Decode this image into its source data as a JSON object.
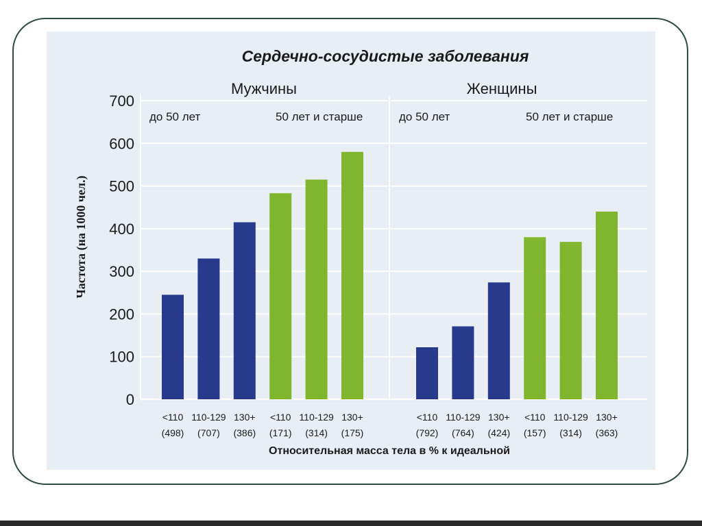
{
  "chart_data": {
    "type": "bar",
    "title": "Сердечно-сосудистые заболевания",
    "ylabel": "Частота (на 1000 чел.)",
    "xlabel": "Относительная масса тела в % к идеальной",
    "ylim": [
      0,
      700
    ],
    "yticks": [
      "700",
      "600",
      "500",
      "400",
      "300",
      "200",
      "100",
      "0"
    ],
    "grid": true,
    "colors": {
      "under_50": "#283a8c",
      "over_50": "#7fb62e",
      "panel": "#e9eef4",
      "grid": "#ffffff"
    },
    "groups": [
      {
        "name": "Мужчины",
        "subgroups": [
          "до 50 лет",
          "50 лет и старше"
        ],
        "bars": [
          {
            "category": "<110",
            "n": "(498)",
            "age": "under_50",
            "value": 245
          },
          {
            "category": "110-129",
            "n": "(707)",
            "age": "under_50",
            "value": 330
          },
          {
            "category": "130+",
            "n": "(386)",
            "age": "under_50",
            "value": 415
          },
          {
            "category": "<110",
            "n": "(171)",
            "age": "over_50",
            "value": 483
          },
          {
            "category": "110-129",
            "n": "(314)",
            "age": "over_50",
            "value": 515
          },
          {
            "category": "130+",
            "n": "(175)",
            "age": "over_50",
            "value": 580
          }
        ]
      },
      {
        "name": "Женщины",
        "subgroups": [
          "до 50 лет",
          "50 лет и старше"
        ],
        "bars": [
          {
            "category": "<110",
            "n": "(792)",
            "age": "under_50",
            "value": 122
          },
          {
            "category": "110-129",
            "n": "(764)",
            "age": "under_50",
            "value": 171
          },
          {
            "category": "130+",
            "n": "(424)",
            "age": "under_50",
            "value": 274
          },
          {
            "category": "<110",
            "n": "(157)",
            "age": "over_50",
            "value": 380
          },
          {
            "category": "110-129",
            "n": "(314)",
            "age": "over_50",
            "value": 369
          },
          {
            "category": "130+",
            "n": "(363)",
            "age": "over_50",
            "value": 440
          }
        ]
      }
    ]
  }
}
